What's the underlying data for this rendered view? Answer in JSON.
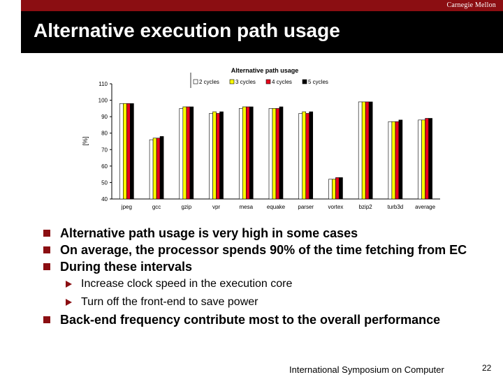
{
  "header": {
    "logo_text": "Carnegie Mellon",
    "title": "Alternative execution path usage"
  },
  "bullets": [
    {
      "level": 1,
      "text": "Alternative path usage is very high in some cases"
    },
    {
      "level": 1,
      "text": "On average, the processor spends 90% of the time fetching from EC"
    },
    {
      "level": 1,
      "text": "During these intervals"
    },
    {
      "level": 2,
      "text": "Increase clock speed in the execution core"
    },
    {
      "level": 2,
      "text": "Turn off the front-end to save power"
    },
    {
      "level": 1,
      "text": "Back-end frequency contribute most to the overall performance"
    }
  ],
  "footer": {
    "conference": "International Symposium on Computer",
    "page_number": "22"
  },
  "colors": {
    "accent": "#8b0e12",
    "series": [
      "#ffffff",
      "#ffff00",
      "#e8001c",
      "#000000"
    ]
  },
  "chart_data": {
    "type": "bar",
    "title": "Alternative path usage",
    "ylabel": "[%]",
    "xlabel": "",
    "ylim": [
      40,
      110
    ],
    "yticks": [
      40,
      50,
      60,
      70,
      80,
      90,
      100,
      110
    ],
    "grid": false,
    "legend_position": "top",
    "categories": [
      "jpeg",
      "gcc",
      "gzip",
      "vpr",
      "mesa",
      "equake",
      "parser",
      "vortex",
      "bzip2",
      "turb3d",
      "average"
    ],
    "series": [
      {
        "name": "2 cycles",
        "color": "#ffffff",
        "values": [
          98,
          76,
          95,
          92,
          95,
          95,
          92,
          52,
          99,
          87,
          88
        ]
      },
      {
        "name": "3 cycles",
        "color": "#ffff00",
        "values": [
          98,
          77,
          96,
          93,
          96,
          95,
          93,
          52,
          99,
          87,
          88
        ]
      },
      {
        "name": "4 cycles",
        "color": "#e8001c",
        "values": [
          98,
          77,
          96,
          92,
          96,
          95,
          92,
          53,
          99,
          87,
          89
        ]
      },
      {
        "name": "5 cycles",
        "color": "#000000",
        "values": [
          98,
          78,
          96,
          93,
          96,
          96,
          93,
          53,
          99,
          88,
          89
        ]
      }
    ]
  }
}
